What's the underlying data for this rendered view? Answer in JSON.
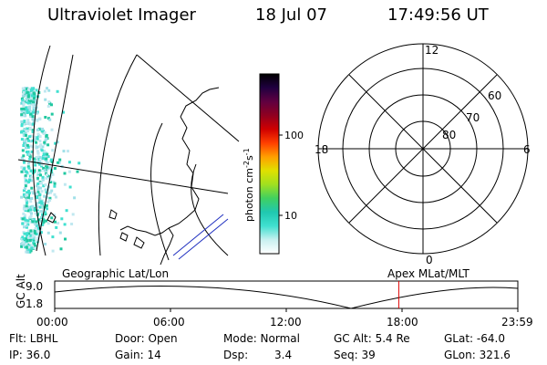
{
  "header": {
    "instrument": "Ultraviolet Imager",
    "date": "18 Jul 07",
    "time": "17:49:56 UT"
  },
  "colorbar": {
    "unit_label": "photon cm",
    "unit_sup1": "-2",
    "unit_mid": "s",
    "unit_sup2": "-1",
    "ticks": [
      "100",
      "10"
    ],
    "colors": [
      "#ffffff",
      "#c8f0f0",
      "#40e0d0",
      "#20c8b0",
      "#40d060",
      "#a0e020",
      "#e0e000",
      "#ffa000",
      "#ff4000",
      "#d00000",
      "#900020",
      "#600040",
      "#200040",
      "#000000"
    ]
  },
  "geo_map": {
    "land_color": "#000000",
    "aurora_colors": [
      "#40e0d0",
      "#a0e0e8",
      "#20c8a0",
      "#c0e8f0"
    ]
  },
  "polar_plot": {
    "mlt_labels": {
      "top": "12",
      "left": "18",
      "right": "6",
      "bottom": "0"
    },
    "lat_labels": [
      "60",
      "70",
      "80"
    ]
  },
  "timeline": {
    "left_label": "Geographic Lat/Lon",
    "right_label": "Apex MLat/MLT",
    "y_axis_label": "GC Alt",
    "y_ticks": [
      "9.0",
      "1.8"
    ],
    "x_ticks": [
      "00:00",
      "06:00",
      "12:00",
      "18:00",
      "23:59"
    ],
    "marker_time_hours": 17.83,
    "marker_color": "#e00000"
  },
  "info": {
    "filter": "Flt: LBHL",
    "ip": "IP: 36.0",
    "door": "Door: Open",
    "gain": "Gain: 14",
    "mode": "Mode: Normal",
    "dsp_label": "Dsp:",
    "dsp_value": "3.4",
    "gc_alt": "GC Alt: 5.4 Re",
    "seq": "Seq: 39",
    "glat": "GLat: -64.0",
    "glon": "GLon: 321.6"
  }
}
